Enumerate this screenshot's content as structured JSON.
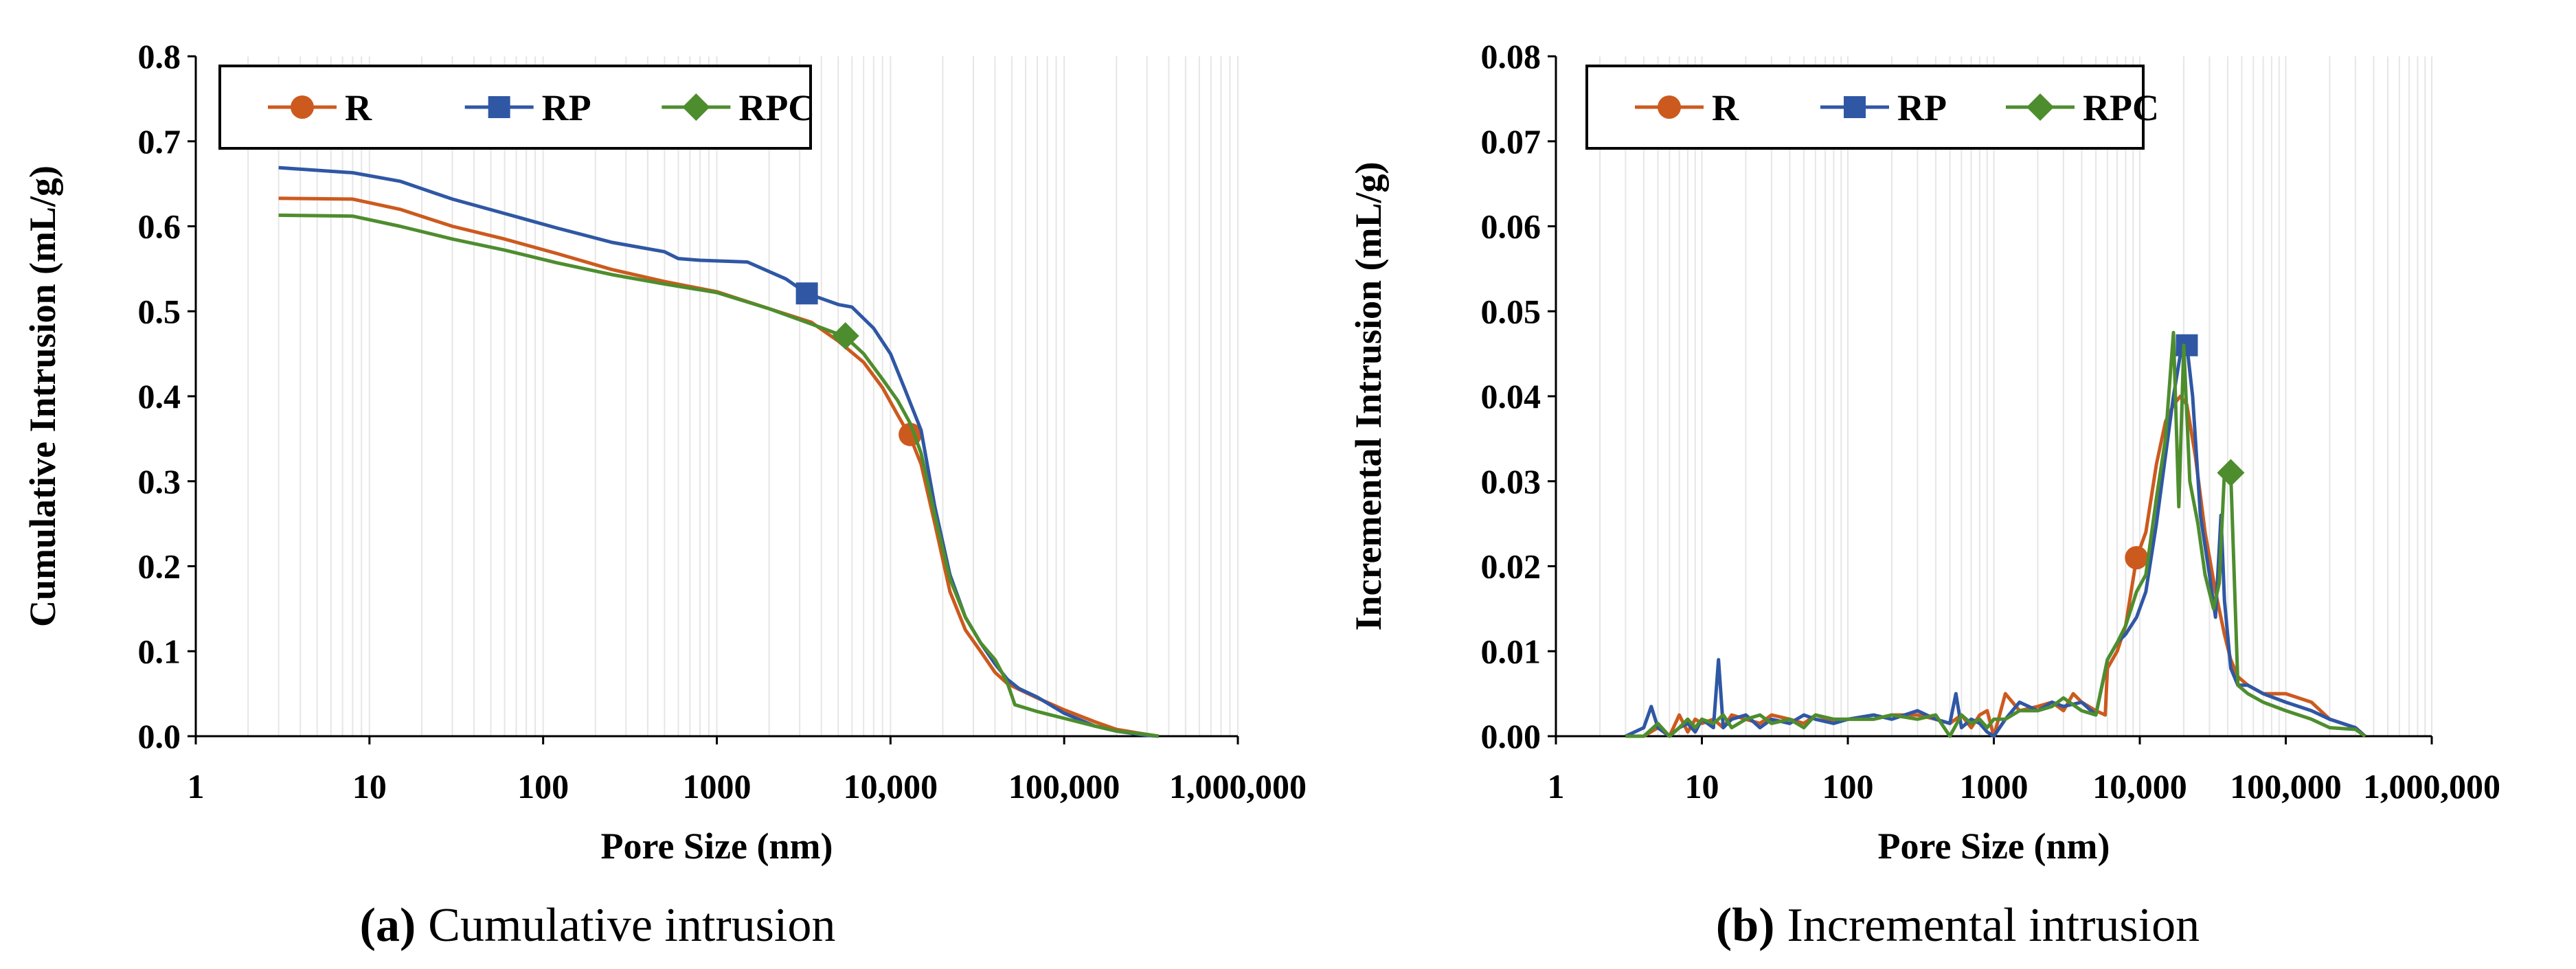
{
  "figure": {
    "panels": [
      {
        "caption_label": "(a)",
        "caption_text": "Cumulative intrusion"
      },
      {
        "caption_label": "(b)",
        "caption_text": "Incremental intrusion"
      }
    ]
  },
  "colors": {
    "R": "#cc5a1e",
    "RP": "#2f57a4",
    "RPC": "#4e8d2e"
  },
  "chart_data": [
    {
      "type": "line",
      "title": "",
      "xlabel": "Pore Size (nm)",
      "ylabel": "Cumulative Intrusion (mL/g)",
      "xscale": "log",
      "xlim": [
        1,
        1000000
      ],
      "ylim": [
        0,
        0.8
      ],
      "x_ticks": [
        "1",
        "10",
        "100",
        "1000",
        "10,000",
        "100,000",
        "1,000,000"
      ],
      "y_ticks": [
        "0.0",
        "0.1",
        "0.2",
        "0.3",
        "0.4",
        "0.5",
        "0.6",
        "0.7",
        "0.8"
      ],
      "legend": {
        "position": "top-left",
        "entries": [
          "R",
          "RP",
          "RPC"
        ]
      },
      "series": [
        {
          "name": "R",
          "marker": "circle",
          "marker_at": [
            13000,
            0.355
          ],
          "x": [
            3,
            8,
            15,
            30,
            60,
            120,
            250,
            500,
            1000,
            2000,
            3500,
            5000,
            7000,
            9000,
            11000,
            13000,
            15000,
            18000,
            22000,
            27000,
            33000,
            40000,
            47000,
            55000,
            70000,
            100000,
            150000,
            200000,
            300000,
            350000
          ],
          "y": [
            0.633,
            0.632,
            0.62,
            0.6,
            0.585,
            0.568,
            0.549,
            0.535,
            0.523,
            0.503,
            0.487,
            0.465,
            0.44,
            0.41,
            0.378,
            0.352,
            0.32,
            0.25,
            0.17,
            0.125,
            0.1,
            0.075,
            0.062,
            0.055,
            0.045,
            0.031,
            0.017,
            0.008,
            0.002,
            0.0
          ]
        },
        {
          "name": "RP",
          "marker": "square",
          "marker_at": [
            3300,
            0.521
          ],
          "x": [
            3,
            8,
            15,
            30,
            60,
            120,
            250,
            500,
            600,
            800,
            1500,
            2500,
            3300,
            4000,
            5000,
            6000,
            8000,
            10000,
            12000,
            15000,
            18000,
            22000,
            27000,
            33000,
            40000,
            47000,
            55000,
            70000,
            100000,
            150000,
            200000,
            300000,
            350000
          ],
          "y": [
            0.669,
            0.663,
            0.653,
            0.632,
            0.615,
            0.598,
            0.581,
            0.57,
            0.562,
            0.56,
            0.558,
            0.538,
            0.521,
            0.515,
            0.508,
            0.505,
            0.48,
            0.45,
            0.41,
            0.36,
            0.27,
            0.19,
            0.14,
            0.11,
            0.085,
            0.067,
            0.056,
            0.046,
            0.027,
            0.012,
            0.006,
            0.001,
            0.0
          ]
        },
        {
          "name": "RPC",
          "marker": "diamond",
          "marker_at": [
            5500,
            0.471
          ],
          "x": [
            3,
            8,
            15,
            30,
            60,
            120,
            250,
            500,
            1000,
            2000,
            3500,
            5500,
            7000,
            9000,
            11000,
            13000,
            15000,
            18000,
            22000,
            27000,
            33000,
            40000,
            47000,
            52000,
            70000,
            100000,
            150000,
            200000,
            300000,
            350000
          ],
          "y": [
            0.613,
            0.612,
            0.6,
            0.585,
            0.572,
            0.557,
            0.543,
            0.532,
            0.522,
            0.503,
            0.485,
            0.47,
            0.45,
            0.42,
            0.395,
            0.368,
            0.333,
            0.26,
            0.185,
            0.14,
            0.11,
            0.09,
            0.063,
            0.037,
            0.029,
            0.021,
            0.012,
            0.006,
            0.002,
            0.0
          ]
        }
      ]
    },
    {
      "type": "line",
      "title": "",
      "xlabel": "Pore Size (nm)",
      "ylabel": "Incremental Intrusion (mL/g)",
      "xscale": "log",
      "xlim": [
        1,
        1000000
      ],
      "ylim": [
        0,
        0.08
      ],
      "x_ticks": [
        "1",
        "10",
        "100",
        "1000",
        "10,000",
        "100,000",
        "1,000,000"
      ],
      "y_ticks": [
        "0.00",
        "0.01",
        "0.02",
        "0.03",
        "0.04",
        "0.05",
        "0.06",
        "0.07",
        "0.08"
      ],
      "legend": {
        "position": "top-left",
        "entries": [
          "R",
          "RP",
          "RPC"
        ]
      },
      "series": [
        {
          "name": "R",
          "marker": "circle",
          "marker_at": [
            9500,
            0.021
          ],
          "x": [
            3,
            4,
            5,
            6,
            7,
            8,
            9,
            10,
            12,
            14,
            16,
            20,
            25,
            30,
            40,
            50,
            60,
            80,
            100,
            150,
            200,
            300,
            400,
            500,
            600,
            700,
            800,
            900,
            1000,
            1200,
            1500,
            2000,
            2500,
            3000,
            3500,
            4000,
            5000,
            5800,
            6000,
            7000,
            8000,
            9500,
            11000,
            13000,
            15000,
            17000,
            19000,
            21000,
            24000,
            28000,
            33000,
            38000,
            42000,
            47000,
            55000,
            70000,
            100000,
            150000,
            200000,
            300000,
            350000
          ],
          "y": [
            0.0,
            0.0,
            0.001,
            0.0,
            0.0025,
            0.0005,
            0.002,
            0.0015,
            0.002,
            0.001,
            0.0025,
            0.002,
            0.0015,
            0.0025,
            0.002,
            0.0015,
            0.0025,
            0.0018,
            0.002,
            0.002,
            0.0025,
            0.0025,
            0.002,
            0.0015,
            0.0025,
            0.001,
            0.0025,
            0.003,
            0.0,
            0.005,
            0.003,
            0.0035,
            0.004,
            0.003,
            0.005,
            0.004,
            0.003,
            0.0025,
            0.008,
            0.01,
            0.013,
            0.021,
            0.024,
            0.032,
            0.037,
            0.039,
            0.04,
            0.039,
            0.033,
            0.024,
            0.017,
            0.012,
            0.009,
            0.007,
            0.006,
            0.005,
            0.005,
            0.004,
            0.002,
            0.001,
            0.0
          ]
        },
        {
          "name": "RP",
          "marker": "square",
          "marker_at": [
            21000,
            0.046
          ],
          "x": [
            3,
            4,
            4.5,
            5,
            6,
            7,
            8,
            9,
            10,
            12,
            13,
            14,
            16,
            20,
            25,
            30,
            40,
            50,
            60,
            80,
            100,
            150,
            200,
            300,
            400,
            500,
            550,
            600,
            700,
            800,
            900,
            1000,
            1200,
            1500,
            2000,
            2500,
            3000,
            4000,
            5000,
            6000,
            7000,
            8000,
            9500,
            11000,
            13000,
            15000,
            17000,
            19000,
            21000,
            23000,
            26000,
            30000,
            33000,
            36000,
            38000,
            42000,
            47000,
            55000,
            70000,
            100000,
            150000,
            200000,
            300000,
            350000
          ],
          "y": [
            0.0,
            0.001,
            0.0035,
            0.001,
            0.0,
            0.001,
            0.0015,
            0.0005,
            0.002,
            0.001,
            0.009,
            0.001,
            0.002,
            0.0025,
            0.001,
            0.002,
            0.0015,
            0.0025,
            0.002,
            0.0015,
            0.002,
            0.0025,
            0.002,
            0.003,
            0.002,
            0.0015,
            0.005,
            0.001,
            0.002,
            0.0015,
            0.0005,
            0.0,
            0.002,
            0.004,
            0.003,
            0.004,
            0.0035,
            0.004,
            0.0025,
            0.009,
            0.011,
            0.012,
            0.014,
            0.017,
            0.025,
            0.033,
            0.04,
            0.045,
            0.046,
            0.04,
            0.026,
            0.019,
            0.014,
            0.026,
            0.016,
            0.008,
            0.006,
            0.006,
            0.005,
            0.004,
            0.003,
            0.002,
            0.001,
            0.0
          ]
        },
        {
          "name": "RPC",
          "marker": "diamond",
          "marker_at": [
            42000,
            0.031
          ],
          "x": [
            3,
            4,
            5,
            6,
            7,
            8,
            9,
            10,
            12,
            14,
            16,
            20,
            25,
            30,
            40,
            50,
            60,
            80,
            100,
            150,
            200,
            300,
            400,
            500,
            600,
            700,
            800,
            900,
            1000,
            1200,
            1500,
            2000,
            2500,
            3000,
            4000,
            5000,
            6000,
            7000,
            8000,
            9500,
            11000,
            13000,
            15000,
            17000,
            18500,
            20000,
            22000,
            25000,
            28000,
            32000,
            35000,
            38000,
            42000,
            47000,
            55000,
            70000,
            100000,
            150000,
            200000,
            300000,
            350000
          ],
          "y": [
            0.0,
            0.0,
            0.0015,
            0.0,
            0.001,
            0.002,
            0.001,
            0.002,
            0.0015,
            0.0025,
            0.001,
            0.002,
            0.0025,
            0.0015,
            0.002,
            0.001,
            0.0025,
            0.002,
            0.002,
            0.002,
            0.0025,
            0.002,
            0.0025,
            0.0,
            0.0025,
            0.0015,
            0.002,
            0.001,
            0.002,
            0.002,
            0.003,
            0.003,
            0.0035,
            0.0045,
            0.003,
            0.0025,
            0.009,
            0.011,
            0.013,
            0.017,
            0.019,
            0.028,
            0.035,
            0.0475,
            0.027,
            0.046,
            0.03,
            0.025,
            0.019,
            0.015,
            0.018,
            0.031,
            0.031,
            0.006,
            0.005,
            0.004,
            0.003,
            0.002,
            0.001,
            0.0008,
            0.0
          ]
        }
      ]
    }
  ]
}
